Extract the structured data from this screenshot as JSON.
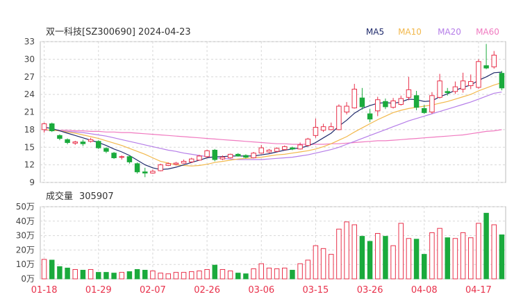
{
  "header": {
    "title": "双一科技[SZ300690] 2024-04-23",
    "ma_labels": [
      {
        "label": "MA5",
        "color": "#1f2a6b"
      },
      {
        "label": "MA10",
        "color": "#f2b84b"
      },
      {
        "label": "MA20",
        "color": "#b57de8"
      },
      {
        "label": "MA60",
        "color": "#f07ac0"
      }
    ]
  },
  "volume_header": {
    "label": "成交量",
    "value": "305907"
  },
  "colors": {
    "up": "#e8304a",
    "down": "#1aaa3c",
    "grid": "#d8d8d8",
    "axis": "#444444",
    "date": "#e8304a"
  },
  "chart_data": {
    "type": "candlestick",
    "title": "双一科技[SZ300690] 2024-04-23",
    "price_axis": {
      "ylim": [
        9,
        33
      ],
      "ticks": [
        "9",
        "12",
        "15",
        "18",
        "21",
        "24",
        "27",
        "30",
        "33"
      ],
      "tick_values": [
        9,
        12,
        15,
        18,
        21,
        24,
        27,
        30,
        33
      ]
    },
    "volume_axis": {
      "ylim": [
        0,
        50
      ],
      "ticks": [
        "0万",
        "10万",
        "20万",
        "30万",
        "40万",
        "50万"
      ],
      "tick_values": [
        0,
        10,
        20,
        30,
        40,
        50
      ]
    },
    "x_labels": [
      {
        "label": "01-18",
        "index": 0
      },
      {
        "label": "01-29",
        "index": 7
      },
      {
        "label": "02-07",
        "index": 14
      },
      {
        "label": "02-26",
        "index": 21
      },
      {
        "label": "03-06",
        "index": 28
      },
      {
        "label": "03-15",
        "index": 35
      },
      {
        "label": "03-26",
        "index": 42
      },
      {
        "label": "04-08",
        "index": 49
      },
      {
        "label": "04-17",
        "index": 56
      }
    ],
    "candles": [
      [
        18.0,
        19.0,
        17.5,
        19.2
      ],
      [
        19.0,
        17.8,
        17.6,
        19.2
      ],
      [
        17.0,
        16.5,
        16.2,
        17.2
      ],
      [
        16.3,
        15.8,
        15.5,
        16.5
      ],
      [
        15.7,
        15.9,
        15.4,
        16.1
      ],
      [
        15.9,
        15.6,
        15.2,
        16.3
      ],
      [
        16.0,
        16.3,
        15.8,
        16.6
      ],
      [
        16.0,
        14.9,
        14.7,
        16.2
      ],
      [
        14.8,
        14.3,
        14.0,
        15.0
      ],
      [
        14.0,
        13.2,
        13.0,
        14.2
      ],
      [
        13.3,
        13.4,
        12.9,
        13.6
      ],
      [
        13.4,
        12.5,
        12.2,
        13.6
      ],
      [
        12.2,
        10.8,
        10.5,
        12.4
      ],
      [
        10.8,
        10.6,
        9.9,
        11.5
      ],
      [
        10.6,
        10.9,
        10.5,
        11.2
      ],
      [
        11.0,
        12.0,
        10.9,
        12.2
      ],
      [
        11.9,
        12.2,
        11.8,
        12.4
      ],
      [
        12.1,
        12.3,
        11.9,
        12.5
      ],
      [
        12.3,
        12.6,
        12.2,
        12.9
      ],
      [
        12.5,
        13.0,
        12.3,
        13.2
      ],
      [
        12.8,
        13.5,
        12.7,
        13.7
      ],
      [
        13.4,
        14.4,
        13.2,
        14.6
      ],
      [
        14.5,
        12.9,
        12.6,
        14.7
      ],
      [
        13.0,
        13.3,
        12.8,
        13.6
      ],
      [
        13.2,
        13.8,
        13.1,
        13.9
      ],
      [
        13.8,
        13.5,
        13.4,
        14.0
      ],
      [
        13.6,
        13.3,
        13.1,
        13.8
      ],
      [
        13.2,
        14.0,
        13.1,
        14.2
      ],
      [
        14.0,
        14.9,
        13.9,
        15.4
      ],
      [
        14.2,
        14.5,
        14.0,
        14.7
      ],
      [
        14.3,
        14.8,
        14.2,
        15.0
      ],
      [
        14.6,
        15.1,
        14.5,
        15.3
      ],
      [
        14.9,
        14.7,
        14.5,
        15.1
      ],
      [
        14.7,
        15.4,
        14.6,
        15.8
      ],
      [
        15.3,
        16.4,
        15.2,
        16.6
      ],
      [
        17.0,
        18.4,
        16.6,
        19.9
      ],
      [
        17.9,
        18.5,
        17.6,
        19.0
      ],
      [
        18.0,
        18.5,
        17.9,
        19.2
      ],
      [
        18.0,
        22.0,
        17.9,
        22.3
      ],
      [
        21.0,
        22.0,
        20.6,
        22.7
      ],
      [
        21.7,
        24.9,
        21.6,
        25.8
      ],
      [
        23.4,
        21.9,
        21.4,
        25.1
      ],
      [
        20.7,
        19.8,
        19.3,
        21.5
      ],
      [
        21.2,
        23.1,
        20.3,
        23.6
      ],
      [
        22.8,
        21.9,
        21.5,
        23.3
      ],
      [
        21.8,
        22.9,
        21.6,
        23.4
      ],
      [
        22.3,
        23.3,
        22.1,
        23.8
      ],
      [
        23.5,
        24.8,
        23.0,
        27.0
      ],
      [
        23.8,
        21.8,
        21.3,
        24.6
      ],
      [
        21.6,
        20.9,
        20.7,
        22.2
      ],
      [
        21.0,
        23.8,
        20.7,
        24.4
      ],
      [
        23.5,
        26.3,
        23.3,
        27.5
      ],
      [
        24.5,
        24.3,
        23.8,
        25.1
      ],
      [
        24.5,
        25.3,
        24.1,
        26.2
      ],
      [
        24.9,
        26.3,
        24.3,
        27.7
      ],
      [
        25.5,
        26.2,
        24.9,
        27.4
      ],
      [
        25.2,
        29.6,
        25.0,
        30.0
      ],
      [
        28.9,
        28.5,
        28.3,
        32.6
      ],
      [
        28.7,
        30.7,
        28.4,
        31.4
      ],
      [
        27.6,
        25.1,
        24.7,
        28.0
      ]
    ],
    "volumes": [
      13.5,
      13.0,
      8.5,
      7.5,
      6.5,
      6.0,
      6.5,
      4.5,
      4.5,
      4.0,
      4.5,
      5.0,
      6.5,
      6.0,
      5.5,
      4.0,
      3.5,
      4.5,
      4.5,
      5.0,
      5.5,
      6.5,
      9.5,
      6.5,
      5.5,
      4.0,
      3.5,
      7.0,
      10.5,
      7.5,
      7.0,
      7.5,
      6.0,
      10.5,
      13.0,
      23.0,
      21.0,
      17.0,
      34.5,
      39.5,
      37.5,
      29.5,
      26.0,
      31.5,
      29.5,
      23.0,
      38.5,
      28.0,
      27.5,
      17.0,
      32.0,
      35.0,
      28.5,
      28.0,
      32.0,
      28.5,
      38.5,
      45.5,
      37.5,
      30.5
    ],
    "ma5": [
      18.4,
      18.2,
      17.8,
      17.4,
      17.0,
      16.6,
      16.2,
      15.8,
      15.3,
      14.7,
      14.2,
      13.6,
      12.8,
      12.0,
      11.5,
      11.2,
      11.3,
      11.6,
      12.0,
      12.4,
      12.8,
      13.2,
      13.4,
      13.4,
      13.5,
      13.5,
      13.5,
      13.5,
      13.7,
      13.9,
      14.2,
      14.5,
      14.7,
      14.9,
      15.2,
      15.8,
      16.6,
      17.4,
      18.6,
      19.6,
      20.8,
      21.6,
      22.1,
      22.5,
      22.6,
      22.5,
      22.7,
      23.2,
      23.1,
      22.8,
      22.9,
      23.6,
      24.1,
      24.7,
      25.2,
      25.6,
      26.4,
      27.0,
      27.7,
      27.8
    ],
    "ma10": [
      18.0,
      17.9,
      17.8,
      17.6,
      17.4,
      17.1,
      16.8,
      16.5,
      16.1,
      15.7,
      15.3,
      14.8,
      14.3,
      13.8,
      13.2,
      12.6,
      12.3,
      12.0,
      11.9,
      11.8,
      11.9,
      12.1,
      12.4,
      12.6,
      12.8,
      13.0,
      13.1,
      13.2,
      13.3,
      13.5,
      13.7,
      13.8,
      14.0,
      14.2,
      14.4,
      14.7,
      15.1,
      15.6,
      16.2,
      16.8,
      17.6,
      18.3,
      19.0,
      19.7,
      20.3,
      20.9,
      21.3,
      21.6,
      21.8,
      22.0,
      22.2,
      22.5,
      22.8,
      23.2,
      23.6,
      24.0,
      24.6,
      25.1,
      25.6,
      26.0
    ],
    "ma20": [
      17.9,
      17.9,
      17.8,
      17.7,
      17.6,
      17.5,
      17.3,
      17.1,
      16.9,
      16.6,
      16.3,
      16.0,
      15.7,
      15.4,
      15.1,
      14.8,
      14.5,
      14.3,
      14.0,
      13.8,
      13.6,
      13.4,
      13.2,
      13.1,
      13.0,
      12.9,
      12.9,
      12.9,
      12.9,
      13.0,
      13.1,
      13.2,
      13.3,
      13.5,
      13.7,
      14.0,
      14.3,
      14.6,
      15.0,
      15.5,
      16.0,
      16.5,
      17.0,
      17.5,
      18.0,
      18.5,
      19.0,
      19.5,
      19.9,
      20.3,
      20.7,
      21.1,
      21.5,
      21.9,
      22.3,
      22.7,
      23.2,
      23.7,
      24.2,
      24.4
    ],
    "ma60": [
      17.9,
      17.9,
      17.9,
      17.9,
      17.8,
      17.8,
      17.7,
      17.7,
      17.6,
      17.6,
      17.5,
      17.5,
      17.4,
      17.3,
      17.2,
      17.1,
      17.0,
      16.9,
      16.8,
      16.7,
      16.6,
      16.5,
      16.4,
      16.3,
      16.2,
      16.1,
      16.0,
      15.9,
      15.8,
      15.7,
      15.6,
      15.6,
      15.5,
      15.5,
      15.5,
      15.5,
      15.5,
      15.6,
      15.6,
      15.7,
      15.8,
      15.9,
      16.0,
      16.1,
      16.1,
      16.2,
      16.3,
      16.4,
      16.5,
      16.6,
      16.7,
      16.8,
      16.9,
      17.0,
      17.1,
      17.3,
      17.5,
      17.7,
      17.8,
      18.0
    ]
  }
}
